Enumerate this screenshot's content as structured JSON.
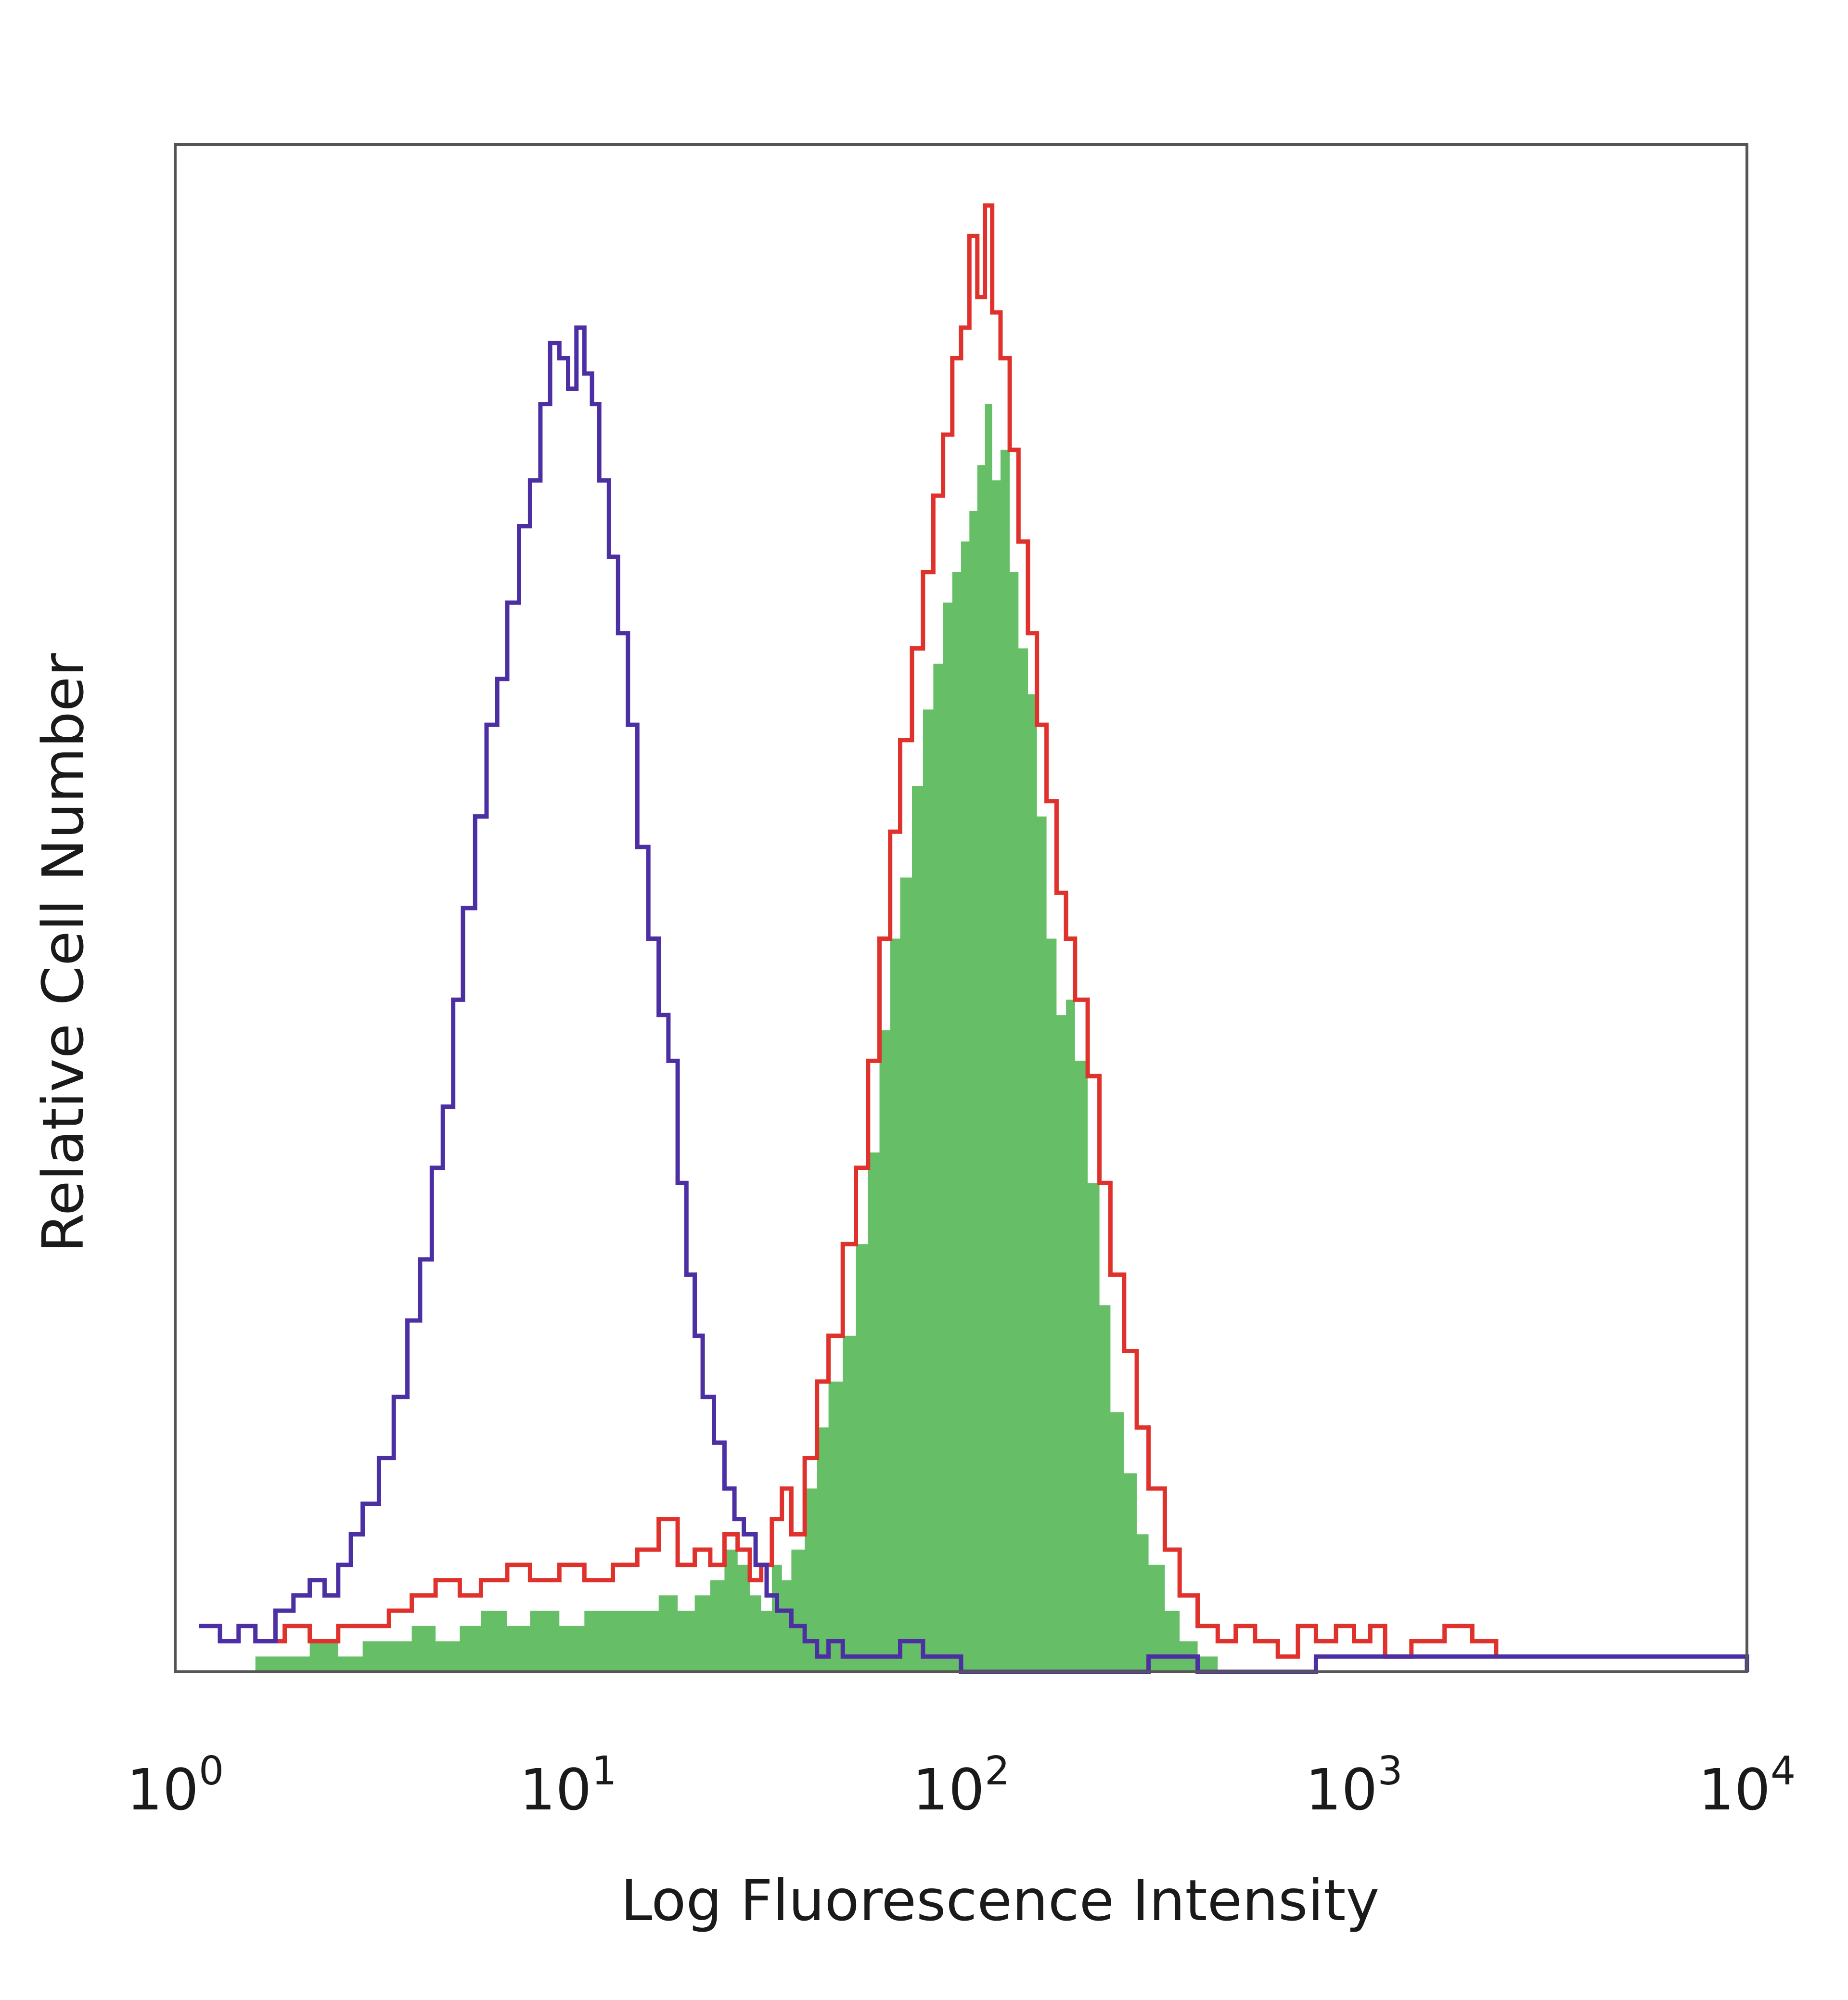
{
  "chart_data": {
    "type": "area",
    "xlabel": "Log Fluorescence Intensity",
    "ylabel": "Relative Cell Number",
    "xscale": "log",
    "xlim": [
      1,
      10000
    ],
    "ylim": [
      0,
      100
    ],
    "grid": false,
    "x_ticks": [
      {
        "base": "10",
        "exp": "0",
        "value": 1
      },
      {
        "base": "10",
        "exp": "1",
        "value": 10
      },
      {
        "base": "10",
        "exp": "2",
        "value": 100
      },
      {
        "base": "10",
        "exp": "3",
        "value": 1000
      },
      {
        "base": "10",
        "exp": "4",
        "value": 10000
      }
    ],
    "series": [
      {
        "style": "filled",
        "color": "#66bf66",
        "x": [
          1.6,
          1.9,
          2.2,
          2.6,
          3.0,
          3.5,
          4.0,
          4.6,
          5.3,
          6.0,
          7.0,
          8.0,
          9.5,
          11.0,
          13.0,
          15.0,
          17.0,
          19.0,
          21.0,
          23.0,
          25.0,
          27.0,
          29.0,
          31.0,
          33.0,
          35.0,
          37.0,
          40.0,
          43.0,
          46.0,
          50.0,
          54.0,
          58.0,
          62.0,
          66.0,
          70.0,
          75.0,
          80.0,
          85.0,
          90.0,
          95.0,
          100.0,
          105.0,
          110.0,
          115.0,
          120.0,
          126.0,
          133.0,
          140.0,
          148.0,
          156.0,
          165.0,
          175.0,
          185.0,
          195.0,
          210.0,
          225.0,
          240.0,
          260.0,
          280.0,
          300.0,
          330.0,
          360.0,
          400.0,
          450.0
        ],
        "y": [
          1,
          1,
          2,
          1,
          2,
          2,
          3,
          2,
          3,
          4,
          3,
          4,
          3,
          4,
          4,
          4,
          5,
          4,
          5,
          6,
          8,
          7,
          5,
          4,
          7,
          6,
          8,
          12,
          16,
          19,
          22,
          28,
          34,
          42,
          48,
          52,
          58,
          63,
          66,
          70,
          72,
          74,
          76,
          79,
          83,
          78,
          80,
          72,
          67,
          64,
          56,
          48,
          43,
          44,
          40,
          32,
          24,
          17,
          13,
          9,
          7,
          4,
          2,
          1,
          0
        ]
      },
      {
        "style": "line",
        "color": "#e0322c",
        "x": [
          1.6,
          1.9,
          2.2,
          2.6,
          3.0,
          3.5,
          4.0,
          4.6,
          5.3,
          6.0,
          7.0,
          8.0,
          9.5,
          11.0,
          13.0,
          15.0,
          17.0,
          19.0,
          21.0,
          23.0,
          25.0,
          27.0,
          29.0,
          31.0,
          33.0,
          35.0,
          37.0,
          40.0,
          43.0,
          46.0,
          50.0,
          54.0,
          58.0,
          62.0,
          66.0,
          70.0,
          75.0,
          80.0,
          85.0,
          90.0,
          95.0,
          100.0,
          105.0,
          110.0,
          115.0,
          120.0,
          126.0,
          133.0,
          140.0,
          148.0,
          156.0,
          165.0,
          175.0,
          185.0,
          195.0,
          210.0,
          225.0,
          240.0,
          260.0,
          280.0,
          300.0,
          330.0,
          360.0,
          400.0,
          450.0,
          500.0,
          560.0,
          640.0,
          720.0,
          800.0,
          900.0,
          1000.0,
          1100.0,
          1200.0,
          1400.0,
          1700.0,
          2000.0,
          2300.0
        ],
        "y": [
          2,
          3,
          2,
          3,
          3,
          4,
          5,
          6,
          5,
          6,
          7,
          6,
          7,
          6,
          7,
          8,
          10,
          7,
          8,
          7,
          9,
          8,
          6,
          7,
          10,
          12,
          9,
          14,
          19,
          22,
          28,
          33,
          40,
          48,
          55,
          61,
          67,
          72,
          77,
          81,
          86,
          88,
          94,
          90,
          96,
          89,
          86,
          80,
          74,
          68,
          62,
          57,
          51,
          48,
          44,
          39,
          32,
          26,
          21,
          16,
          12,
          8,
          5,
          3,
          2,
          3,
          2,
          1,
          3,
          2,
          3,
          2,
          3,
          1,
          2,
          3,
          2,
          1
        ]
      },
      {
        "style": "line",
        "color": "#4b2fa3",
        "x": [
          1.15,
          1.3,
          1.45,
          1.6,
          1.8,
          2.0,
          2.2,
          2.4,
          2.6,
          2.8,
          3.0,
          3.3,
          3.6,
          3.9,
          4.2,
          4.5,
          4.8,
          5.1,
          5.4,
          5.8,
          6.2,
          6.6,
          7.0,
          7.5,
          8.0,
          8.5,
          9.0,
          9.5,
          10.0,
          10.5,
          11.0,
          11.5,
          12.0,
          12.7,
          13.4,
          14.2,
          15.0,
          16.0,
          17.0,
          18.0,
          19.0,
          20.0,
          21.0,
          22.0,
          23.5,
          25.0,
          26.5,
          28.0,
          30.0,
          32.0,
          34.0,
          37.0,
          40.0,
          43.0,
          46.0,
          50.0,
          60.0,
          70.0,
          80.0,
          100.0,
          200.0,
          300.0,
          400.0,
          800.0,
          1200.0,
          10000.0
        ],
        "y": [
          3,
          2,
          3,
          2,
          4,
          5,
          6,
          5,
          7,
          9,
          11,
          14,
          18,
          23,
          27,
          33,
          37,
          44,
          50,
          56,
          62,
          65,
          70,
          75,
          78,
          83,
          87,
          86,
          84,
          88,
          85,
          83,
          78,
          73,
          68,
          62,
          54,
          48,
          43,
          40,
          32,
          26,
          22,
          18,
          15,
          12,
          10,
          9,
          7,
          5,
          4,
          3,
          2,
          1,
          2,
          1,
          1,
          2,
          1,
          0,
          0,
          1,
          0,
          1,
          1,
          0
        ]
      }
    ]
  }
}
